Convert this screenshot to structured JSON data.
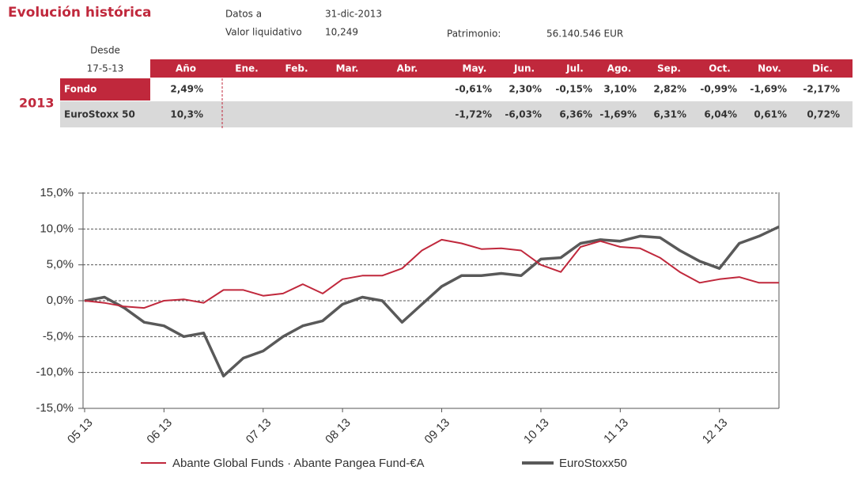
{
  "header": {
    "title": "Evolución histórica",
    "date_label": "Datos a",
    "date": "31-dic-2013",
    "nav_label": "Valor liquidativo",
    "nav": "10,249",
    "assets_label": "Patrimonio:",
    "assets": "56.140.546 EUR"
  },
  "table": {
    "since_label": "Desde",
    "since": "17-5-13",
    "year": "2013",
    "header": [
      "Año",
      "Ene.",
      "Feb.",
      "Mar.",
      "Abr.",
      "May.",
      "Jun.",
      "Jul.",
      "Ago.",
      "Sep.",
      "Oct.",
      "Nov.",
      "Dic."
    ],
    "rows": [
      {
        "name": "Fondo",
        "cells": [
          "2,49%",
          null,
          null,
          null,
          null,
          "-0,61%",
          "2,30%",
          "-0,15%",
          "3,10%",
          "2,82%",
          "-0,99%",
          "-1,69%",
          "-2,17%"
        ]
      },
      {
        "name": "EuroStoxx 50",
        "cells": [
          "10,3%",
          null,
          null,
          null,
          null,
          "-1,72%",
          "-6,03%",
          "6,36%",
          "-1,69%",
          "6,31%",
          "6,04%",
          "0,61%",
          "0,72%"
        ]
      }
    ]
  },
  "chart_data": {
    "type": "line",
    "categories": [
      "05 13",
      null,
      null,
      null,
      "06 13",
      null,
      null,
      null,
      null,
      "07 13",
      null,
      null,
      null,
      "08 13",
      null,
      null,
      null,
      null,
      "09 13",
      null,
      null,
      null,
      null,
      "10 13",
      null,
      null,
      null,
      "11 13",
      null,
      null,
      null,
      null,
      "12 13",
      null,
      null,
      null
    ],
    "series": [
      {
        "name": "Abante Global Funds · Abante Pangea Fund-€A",
        "color": "#c0283c",
        "values": [
          0,
          -0.3,
          -0.8,
          -1.0,
          0,
          0.2,
          -0.3,
          1.5,
          1.5,
          0.7,
          1.0,
          2.3,
          1.0,
          3.0,
          3.5,
          3.5,
          4.5,
          7.0,
          8.5,
          8.0,
          7.2,
          7.3,
          7.0,
          5.0,
          4.0,
          7.5,
          8.3,
          7.5,
          7.3,
          6.0,
          4.0,
          2.5,
          3.0,
          3.3,
          2.5,
          2.5
        ]
      },
      {
        "name": "EuroStoxx50",
        "color": "#595959",
        "values": [
          0,
          0.5,
          -1.0,
          -3.0,
          -3.5,
          -5.0,
          -4.5,
          -10.5,
          -8.0,
          -7.0,
          -5.0,
          -3.5,
          -2.8,
          -0.5,
          0.5,
          0.0,
          -3.0,
          -0.5,
          2.0,
          3.5,
          3.5,
          3.8,
          3.5,
          5.8,
          6.0,
          8.0,
          8.5,
          8.3,
          9.0,
          8.8,
          7.0,
          5.5,
          4.5,
          8.0,
          9.0,
          10.3
        ]
      }
    ],
    "ylim": [
      -15,
      15
    ],
    "yticks": [
      {
        "value": -15,
        "label": "-15,0%"
      },
      {
        "value": -10,
        "label": "-10,0%"
      },
      {
        "value": -5,
        "label": "-5,0%"
      },
      {
        "value": 0,
        "label": "0,0%"
      },
      {
        "value": 5,
        "label": "5,0%"
      },
      {
        "value": 10,
        "label": "10,0%"
      },
      {
        "value": 15,
        "label": "15,0%"
      }
    ],
    "grid": true,
    "legend": "bottom"
  }
}
